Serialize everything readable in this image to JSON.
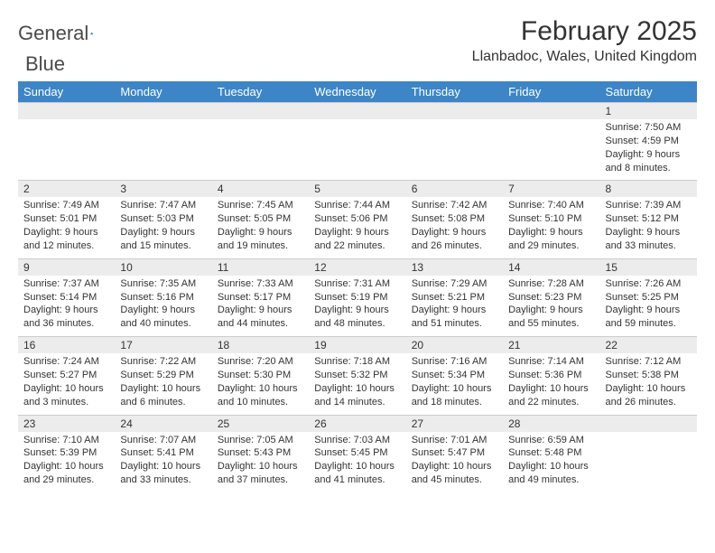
{
  "brand": {
    "part1": "General",
    "part2": "Blue"
  },
  "title": "February 2025",
  "location": "Llanbadoc, Wales, United Kingdom",
  "colors": {
    "header_bg": "#3d85c6",
    "header_fg": "#ffffff",
    "numrow_bg": "#ececec",
    "text": "#333333",
    "brand_blue": "#2a70b8"
  },
  "day_names": [
    "Sunday",
    "Monday",
    "Tuesday",
    "Wednesday",
    "Thursday",
    "Friday",
    "Saturday"
  ],
  "weeks": [
    {
      "nums": [
        "",
        "",
        "",
        "",
        "",
        "",
        "1"
      ],
      "details": [
        null,
        null,
        null,
        null,
        null,
        null,
        {
          "sunrise": "Sunrise: 7:50 AM",
          "sunset": "Sunset: 4:59 PM",
          "day1": "Daylight: 9 hours",
          "day2": "and 8 minutes."
        }
      ]
    },
    {
      "nums": [
        "2",
        "3",
        "4",
        "5",
        "6",
        "7",
        "8"
      ],
      "details": [
        {
          "sunrise": "Sunrise: 7:49 AM",
          "sunset": "Sunset: 5:01 PM",
          "day1": "Daylight: 9 hours",
          "day2": "and 12 minutes."
        },
        {
          "sunrise": "Sunrise: 7:47 AM",
          "sunset": "Sunset: 5:03 PM",
          "day1": "Daylight: 9 hours",
          "day2": "and 15 minutes."
        },
        {
          "sunrise": "Sunrise: 7:45 AM",
          "sunset": "Sunset: 5:05 PM",
          "day1": "Daylight: 9 hours",
          "day2": "and 19 minutes."
        },
        {
          "sunrise": "Sunrise: 7:44 AM",
          "sunset": "Sunset: 5:06 PM",
          "day1": "Daylight: 9 hours",
          "day2": "and 22 minutes."
        },
        {
          "sunrise": "Sunrise: 7:42 AM",
          "sunset": "Sunset: 5:08 PM",
          "day1": "Daylight: 9 hours",
          "day2": "and 26 minutes."
        },
        {
          "sunrise": "Sunrise: 7:40 AM",
          "sunset": "Sunset: 5:10 PM",
          "day1": "Daylight: 9 hours",
          "day2": "and 29 minutes."
        },
        {
          "sunrise": "Sunrise: 7:39 AM",
          "sunset": "Sunset: 5:12 PM",
          "day1": "Daylight: 9 hours",
          "day2": "and 33 minutes."
        }
      ]
    },
    {
      "nums": [
        "9",
        "10",
        "11",
        "12",
        "13",
        "14",
        "15"
      ],
      "details": [
        {
          "sunrise": "Sunrise: 7:37 AM",
          "sunset": "Sunset: 5:14 PM",
          "day1": "Daylight: 9 hours",
          "day2": "and 36 minutes."
        },
        {
          "sunrise": "Sunrise: 7:35 AM",
          "sunset": "Sunset: 5:16 PM",
          "day1": "Daylight: 9 hours",
          "day2": "and 40 minutes."
        },
        {
          "sunrise": "Sunrise: 7:33 AM",
          "sunset": "Sunset: 5:17 PM",
          "day1": "Daylight: 9 hours",
          "day2": "and 44 minutes."
        },
        {
          "sunrise": "Sunrise: 7:31 AM",
          "sunset": "Sunset: 5:19 PM",
          "day1": "Daylight: 9 hours",
          "day2": "and 48 minutes."
        },
        {
          "sunrise": "Sunrise: 7:29 AM",
          "sunset": "Sunset: 5:21 PM",
          "day1": "Daylight: 9 hours",
          "day2": "and 51 minutes."
        },
        {
          "sunrise": "Sunrise: 7:28 AM",
          "sunset": "Sunset: 5:23 PM",
          "day1": "Daylight: 9 hours",
          "day2": "and 55 minutes."
        },
        {
          "sunrise": "Sunrise: 7:26 AM",
          "sunset": "Sunset: 5:25 PM",
          "day1": "Daylight: 9 hours",
          "day2": "and 59 minutes."
        }
      ]
    },
    {
      "nums": [
        "16",
        "17",
        "18",
        "19",
        "20",
        "21",
        "22"
      ],
      "details": [
        {
          "sunrise": "Sunrise: 7:24 AM",
          "sunset": "Sunset: 5:27 PM",
          "day1": "Daylight: 10 hours",
          "day2": "and 3 minutes."
        },
        {
          "sunrise": "Sunrise: 7:22 AM",
          "sunset": "Sunset: 5:29 PM",
          "day1": "Daylight: 10 hours",
          "day2": "and 6 minutes."
        },
        {
          "sunrise": "Sunrise: 7:20 AM",
          "sunset": "Sunset: 5:30 PM",
          "day1": "Daylight: 10 hours",
          "day2": "and 10 minutes."
        },
        {
          "sunrise": "Sunrise: 7:18 AM",
          "sunset": "Sunset: 5:32 PM",
          "day1": "Daylight: 10 hours",
          "day2": "and 14 minutes."
        },
        {
          "sunrise": "Sunrise: 7:16 AM",
          "sunset": "Sunset: 5:34 PM",
          "day1": "Daylight: 10 hours",
          "day2": "and 18 minutes."
        },
        {
          "sunrise": "Sunrise: 7:14 AM",
          "sunset": "Sunset: 5:36 PM",
          "day1": "Daylight: 10 hours",
          "day2": "and 22 minutes."
        },
        {
          "sunrise": "Sunrise: 7:12 AM",
          "sunset": "Sunset: 5:38 PM",
          "day1": "Daylight: 10 hours",
          "day2": "and 26 minutes."
        }
      ]
    },
    {
      "nums": [
        "23",
        "24",
        "25",
        "26",
        "27",
        "28",
        ""
      ],
      "details": [
        {
          "sunrise": "Sunrise: 7:10 AM",
          "sunset": "Sunset: 5:39 PM",
          "day1": "Daylight: 10 hours",
          "day2": "and 29 minutes."
        },
        {
          "sunrise": "Sunrise: 7:07 AM",
          "sunset": "Sunset: 5:41 PM",
          "day1": "Daylight: 10 hours",
          "day2": "and 33 minutes."
        },
        {
          "sunrise": "Sunrise: 7:05 AM",
          "sunset": "Sunset: 5:43 PM",
          "day1": "Daylight: 10 hours",
          "day2": "and 37 minutes."
        },
        {
          "sunrise": "Sunrise: 7:03 AM",
          "sunset": "Sunset: 5:45 PM",
          "day1": "Daylight: 10 hours",
          "day2": "and 41 minutes."
        },
        {
          "sunrise": "Sunrise: 7:01 AM",
          "sunset": "Sunset: 5:47 PM",
          "day1": "Daylight: 10 hours",
          "day2": "and 45 minutes."
        },
        {
          "sunrise": "Sunrise: 6:59 AM",
          "sunset": "Sunset: 5:48 PM",
          "day1": "Daylight: 10 hours",
          "day2": "and 49 minutes."
        },
        null
      ]
    }
  ]
}
